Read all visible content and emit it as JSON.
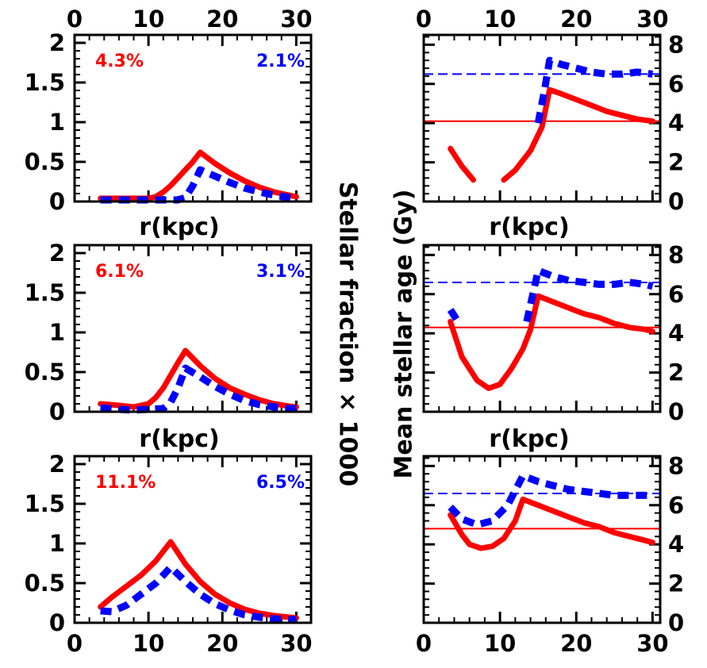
{
  "colors": {
    "red": "#ff0000",
    "blue": "#0000ff",
    "axis": "#000000"
  },
  "labels": {
    "left_ylabel": "Stellar fraction × 1000",
    "right_ylabel": "Mean stellar age (Gy)",
    "xlabel": "r(kpc)"
  },
  "chart_data": [
    {
      "type": "line",
      "panel": "left-top",
      "xlim": [
        0,
        32
      ],
      "ylim": [
        0,
        2.1
      ],
      "xticks": [
        "0",
        "10",
        "20",
        "30"
      ],
      "yticks": [
        "0",
        "0.5",
        "1",
        "1.5",
        "2"
      ],
      "annotations": {
        "red": "4.3%",
        "blue": "2.1%"
      },
      "series": [
        {
          "color": "red",
          "style": "solid",
          "x": [
            3.5,
            6,
            8,
            10,
            11,
            12,
            13,
            14,
            15,
            16,
            17,
            19,
            21,
            23,
            25,
            27,
            29,
            30
          ],
          "y": [
            0.04,
            0.04,
            0.04,
            0.04,
            0.06,
            0.12,
            0.2,
            0.3,
            0.4,
            0.5,
            0.62,
            0.48,
            0.36,
            0.26,
            0.18,
            0.12,
            0.08,
            0.06
          ]
        },
        {
          "color": "blue",
          "style": "dashed",
          "x": [
            3.5,
            6,
            8,
            10,
            12,
            14,
            15,
            16,
            17,
            19,
            21,
            23,
            25,
            27,
            29,
            30
          ],
          "y": [
            0.02,
            0.02,
            0.02,
            0.02,
            0.02,
            0.02,
            0.05,
            0.2,
            0.4,
            0.32,
            0.24,
            0.17,
            0.12,
            0.08,
            0.05,
            0.04
          ]
        }
      ]
    },
    {
      "type": "line",
      "panel": "left-middle",
      "xlim": [
        0,
        32
      ],
      "ylim": [
        0,
        2.1
      ],
      "xticks": [
        "0",
        "10",
        "20",
        "30"
      ],
      "yticks": [
        "0",
        "0.5",
        "1",
        "1.5",
        "2"
      ],
      "annotations": {
        "red": "6.1%",
        "blue": "3.1%"
      },
      "series": [
        {
          "color": "red",
          "style": "solid",
          "x": [
            3.5,
            6,
            8,
            10,
            11,
            12,
            13,
            14,
            15,
            17,
            19,
            21,
            23,
            25,
            27,
            29,
            30
          ],
          "y": [
            0.1,
            0.08,
            0.06,
            0.1,
            0.18,
            0.3,
            0.46,
            0.62,
            0.77,
            0.58,
            0.42,
            0.3,
            0.22,
            0.15,
            0.1,
            0.07,
            0.06
          ]
        },
        {
          "color": "blue",
          "style": "dashed",
          "x": [
            3.5,
            6,
            8,
            10,
            12,
            13,
            14,
            15,
            17,
            19,
            21,
            23,
            25,
            27,
            29,
            30
          ],
          "y": [
            0.05,
            0.03,
            0.02,
            0.03,
            0.04,
            0.12,
            0.3,
            0.55,
            0.44,
            0.32,
            0.22,
            0.14,
            0.09,
            0.06,
            0.04,
            0.04
          ]
        }
      ]
    },
    {
      "type": "line",
      "panel": "left-bottom",
      "xlim": [
        0,
        32
      ],
      "ylim": [
        0,
        2.1
      ],
      "xticks": [
        "0",
        "10",
        "20",
        "30"
      ],
      "yticks": [
        "0",
        "0.5",
        "1",
        "1.5",
        "2"
      ],
      "annotations": {
        "red": "11.1%",
        "blue": "6.5%"
      },
      "series": [
        {
          "color": "red",
          "style": "solid",
          "x": [
            3.5,
            5,
            7,
            9,
            11,
            13,
            15,
            17,
            19,
            21,
            23,
            25,
            27,
            29,
            30
          ],
          "y": [
            0.2,
            0.32,
            0.46,
            0.6,
            0.78,
            1.02,
            0.74,
            0.52,
            0.36,
            0.25,
            0.17,
            0.12,
            0.09,
            0.07,
            0.06
          ]
        },
        {
          "color": "blue",
          "style": "dashed",
          "x": [
            3.5,
            5,
            7,
            9,
            11,
            13,
            15,
            17,
            19,
            21,
            23,
            25,
            27,
            29,
            30
          ],
          "y": [
            0.15,
            0.14,
            0.22,
            0.36,
            0.5,
            0.7,
            0.52,
            0.36,
            0.24,
            0.16,
            0.1,
            0.07,
            0.05,
            0.04,
            0.04
          ]
        }
      ]
    },
    {
      "type": "line",
      "panel": "right-top",
      "xlim": [
        0,
        31
      ],
      "ylim": [
        0,
        8.5
      ],
      "xticks": [
        "0",
        "10",
        "20",
        "30"
      ],
      "yticks": [
        "0",
        "2",
        "4",
        "6",
        "8"
      ],
      "hlines": [
        {
          "color": "red",
          "style": "solid",
          "y": 4.1
        },
        {
          "color": "blue",
          "style": "dashed",
          "y": 6.5
        }
      ],
      "series": [
        {
          "color": "red",
          "style": "solid",
          "x": [
            3.5,
            5,
            6.5
          ],
          "y": [
            2.7,
            1.8,
            1.1
          ]
        },
        {
          "color": "red",
          "style": "solid",
          "x": [
            10.5,
            12,
            14,
            15.5,
            16.5,
            18,
            20,
            22,
            24,
            26,
            28,
            30
          ],
          "y": [
            1.1,
            1.6,
            2.6,
            3.8,
            5.7,
            5.5,
            5.2,
            4.9,
            4.6,
            4.4,
            4.2,
            4.1
          ]
        },
        {
          "color": "blue",
          "style": "dashed",
          "x": [
            15,
            15.8,
            16.5,
            18,
            20,
            22,
            24,
            26,
            28,
            30
          ],
          "y": [
            4.0,
            5.6,
            7.2,
            7.0,
            6.8,
            6.6,
            6.5,
            6.5,
            6.6,
            6.5
          ]
        }
      ]
    },
    {
      "type": "line",
      "panel": "right-middle",
      "xlim": [
        0,
        31
      ],
      "ylim": [
        0,
        8.5
      ],
      "xticks": [
        "0",
        "10",
        "20",
        "30"
      ],
      "yticks": [
        "0",
        "2",
        "4",
        "6",
        "8"
      ],
      "hlines": [
        {
          "color": "red",
          "style": "solid",
          "y": 4.3
        },
        {
          "color": "blue",
          "style": "dashed",
          "y": 6.6
        }
      ],
      "series": [
        {
          "color": "red",
          "style": "solid",
          "x": [
            3.5,
            5,
            7,
            8.5,
            10,
            11.5,
            13,
            14,
            15,
            17,
            19,
            21,
            23,
            25,
            27,
            29,
            30
          ],
          "y": [
            4.6,
            2.8,
            1.6,
            1.2,
            1.4,
            2.2,
            3.2,
            4.2,
            5.9,
            5.6,
            5.3,
            5.0,
            4.8,
            4.5,
            4.3,
            4.2,
            4.1
          ]
        },
        {
          "color": "blue",
          "style": "dashed",
          "x": [
            3.5,
            4.5
          ],
          "y": [
            5.2,
            4.6
          ]
        },
        {
          "color": "blue",
          "style": "dashed",
          "x": [
            13.5,
            14.3,
            15,
            17,
            19,
            21,
            23,
            25,
            27,
            29,
            30
          ],
          "y": [
            4.6,
            6.0,
            7.2,
            6.9,
            6.7,
            6.6,
            6.5,
            6.5,
            6.6,
            6.5,
            6.4
          ]
        }
      ]
    },
    {
      "type": "line",
      "panel": "right-bottom",
      "xlim": [
        0,
        31
      ],
      "ylim": [
        0,
        8.5
      ],
      "xticks": [
        "0",
        "10",
        "20",
        "30"
      ],
      "yticks": [
        "0",
        "2",
        "4",
        "6",
        "8"
      ],
      "hlines": [
        {
          "color": "red",
          "style": "solid",
          "y": 4.8
        },
        {
          "color": "blue",
          "style": "dashed",
          "y": 6.6
        }
      ],
      "series": [
        {
          "color": "red",
          "style": "solid",
          "x": [
            3.5,
            5,
            6,
            7.5,
            9,
            10.5,
            12,
            13,
            15,
            17,
            19,
            21,
            23,
            25,
            27,
            29,
            30
          ],
          "y": [
            5.5,
            4.5,
            4.0,
            3.8,
            3.9,
            4.3,
            5.2,
            6.3,
            6.0,
            5.7,
            5.4,
            5.1,
            4.9,
            4.6,
            4.4,
            4.2,
            4.1
          ]
        },
        {
          "color": "blue",
          "style": "dashed",
          "x": [
            3.5,
            5,
            7,
            9,
            11,
            13,
            15,
            17,
            19,
            21,
            23,
            25,
            27,
            29,
            30
          ],
          "y": [
            5.9,
            5.3,
            5.0,
            5.2,
            6.0,
            7.5,
            7.2,
            7.0,
            6.8,
            6.7,
            6.6,
            6.5,
            6.5,
            6.5,
            6.5
          ]
        }
      ]
    }
  ]
}
